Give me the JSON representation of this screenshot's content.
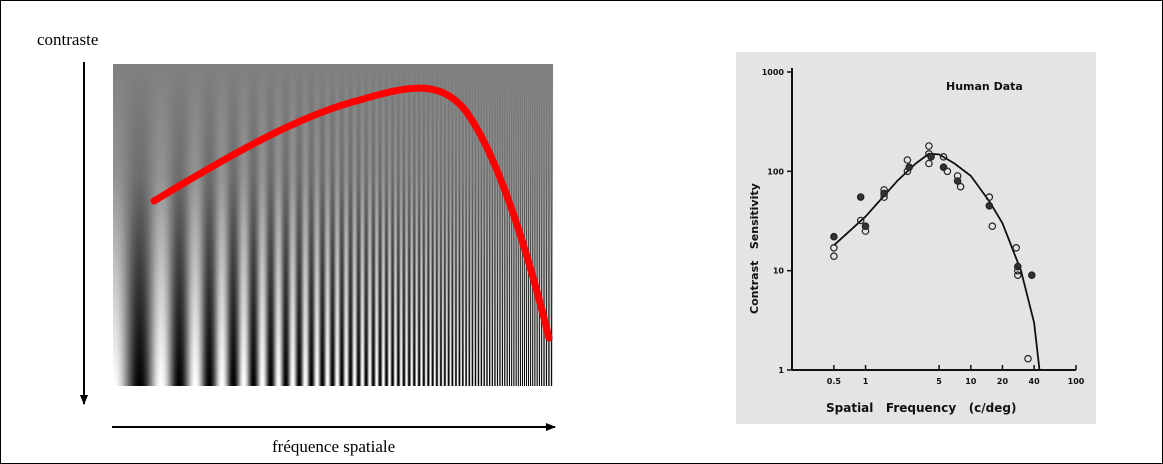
{
  "left_figure": {
    "ylabel": "contraste",
    "xlabel": "fréquence spatiale",
    "curve_color": "#ff0000"
  },
  "chart_data": {
    "type": "scatter",
    "title": "Human Data",
    "xlabel": "Spatial   Frequency   (c/deg)",
    "ylabel": "Contrast   Sensitivity",
    "xscale": "log",
    "yscale": "log",
    "xlim": [
      0.2,
      100
    ],
    "ylim": [
      1,
      1000
    ],
    "x_ticks": [
      0.5,
      1,
      5,
      10,
      20,
      40,
      100
    ],
    "x_tick_labels": [
      "0.5",
      "1",
      "5",
      "10",
      "20",
      "40",
      "100"
    ],
    "y_ticks": [
      1,
      10,
      100,
      1000
    ],
    "y_tick_labels": [
      "1",
      "10",
      "100",
      "1000"
    ],
    "grid": false,
    "series": [
      {
        "x": [
          0.5,
          0.5,
          0.5,
          0.9,
          0.9,
          1.0,
          1.0,
          1.5,
          1.5,
          1.5,
          2.5,
          2.5,
          2.6,
          4.0,
          4.0,
          4.2,
          4.0,
          5.5,
          5.5,
          6.0,
          7.5,
          7.5,
          8.0,
          15,
          15,
          16,
          27,
          28,
          28,
          28,
          38,
          35
        ],
        "y": [
          22,
          17,
          14,
          55,
          32,
          25,
          28,
          65,
          55,
          60,
          130,
          100,
          110,
          180,
          150,
          140,
          120,
          140,
          110,
          100,
          90,
          80,
          70,
          55,
          45,
          28,
          17,
          11,
          9,
          10,
          9,
          1.3
        ]
      }
    ],
    "fit_curve": {
      "x": [
        0.5,
        1,
        2,
        3,
        4,
        5,
        7,
        10,
        15,
        20,
        30,
        40,
        45
      ],
      "y": [
        18,
        35,
        80,
        120,
        150,
        148,
        120,
        90,
        50,
        30,
        10,
        3,
        1
      ]
    }
  }
}
